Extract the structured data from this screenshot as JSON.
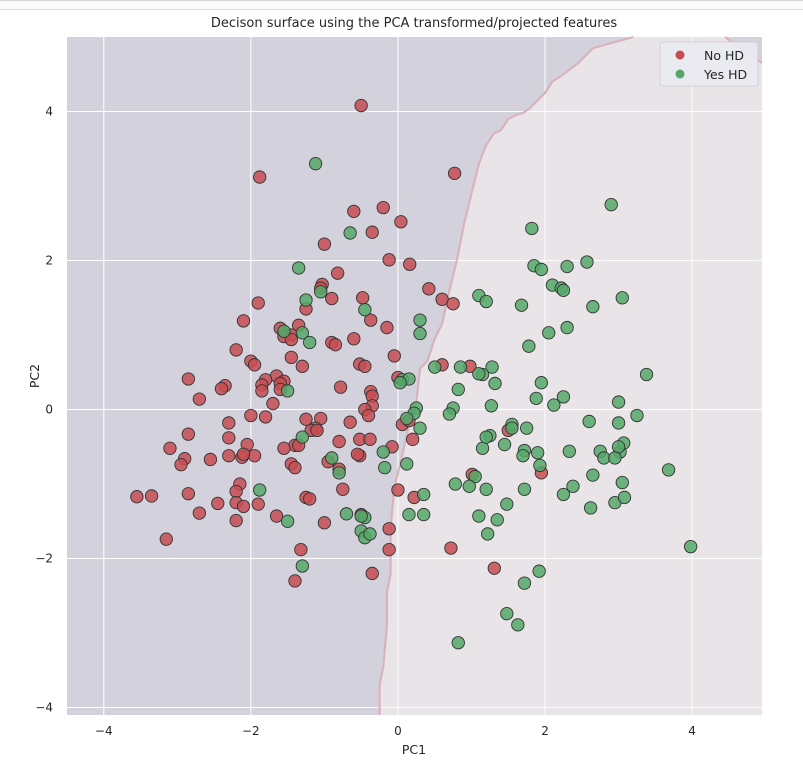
{
  "chart_data": {
    "type": "scatter",
    "title": "Decison surface using the PCA transformed/projected features",
    "xlabel": "PC1",
    "ylabel": "PC2",
    "xlim": [
      -4.5,
      4.95
    ],
    "ylim": [
      -4.1,
      5.0
    ],
    "xticks": [
      -4,
      -2,
      0,
      2,
      4
    ],
    "yticks": [
      -4,
      -2,
      0,
      2,
      4
    ],
    "xtick_labels": [
      "−4",
      "−2",
      "0",
      "2",
      "4"
    ],
    "ytick_labels": [
      "−4",
      "−2",
      "0",
      "2",
      "4"
    ],
    "grid": true,
    "legend_position": "top-right",
    "decision_boundary": {
      "x": [
        -0.25,
        -0.25,
        -0.2,
        -0.15,
        -0.15,
        -0.1,
        -0.1,
        -0.05,
        0.05,
        0.15,
        0.25,
        0.3,
        0.4,
        0.5,
        0.6,
        0.7,
        0.8,
        0.9,
        1.0,
        1.1,
        1.2,
        1.3,
        1.4,
        1.5,
        1.6,
        1.7,
        1.8,
        1.9,
        2.0,
        2.1,
        2.25,
        2.45,
        2.65,
        3.2
      ],
      "y": [
        -4.1,
        -3.7,
        -3.45,
        -2.9,
        -2.45,
        -2.2,
        -1.6,
        -1.05,
        -0.65,
        -0.2,
        0.1,
        0.55,
        0.65,
        0.95,
        1.15,
        1.6,
        2.0,
        2.5,
        2.9,
        3.3,
        3.55,
        3.7,
        3.75,
        3.9,
        3.95,
        3.98,
        4.05,
        4.15,
        4.25,
        4.4,
        4.5,
        4.65,
        4.85,
        5.0
      ]
    },
    "upper_boundary": {
      "x": [
        4.45,
        4.55,
        4.65,
        4.75,
        4.85,
        4.95
      ],
      "y": [
        5.0,
        4.92,
        4.85,
        4.78,
        4.72,
        4.65
      ]
    },
    "regions": [
      {
        "name": "No HD",
        "color": "#d3d2dc"
      },
      {
        "name": "Yes HD",
        "color": "#e8e4e8"
      }
    ],
    "series": [
      {
        "name": "No HD",
        "color": "#c44e52",
        "points": [
          [
            -0.5,
            4.08
          ],
          [
            -1.88,
            3.12
          ],
          [
            0.77,
            3.17
          ],
          [
            -0.6,
            2.66
          ],
          [
            -0.2,
            2.71
          ],
          [
            0.04,
            2.52
          ],
          [
            -0.35,
            2.38
          ],
          [
            -1.0,
            2.22
          ],
          [
            -0.12,
            2.01
          ],
          [
            0.16,
            1.95
          ],
          [
            -0.82,
            1.83
          ],
          [
            -1.03,
            1.68
          ],
          [
            -1.05,
            1.63
          ],
          [
            0.42,
            1.62
          ],
          [
            0.6,
            1.48
          ],
          [
            0.75,
            1.42
          ],
          [
            -1.9,
            1.43
          ],
          [
            -0.9,
            1.49
          ],
          [
            -0.48,
            1.5
          ],
          [
            -1.25,
            1.35
          ],
          [
            -0.37,
            1.2
          ],
          [
            -2.1,
            1.19
          ],
          [
            -1.6,
            1.09
          ],
          [
            -1.35,
            1.13
          ],
          [
            -1.45,
            1.0
          ],
          [
            -1.55,
            0.98
          ],
          [
            -1.45,
            0.94
          ],
          [
            -0.15,
            1.1
          ],
          [
            -0.9,
            0.9
          ],
          [
            -0.85,
            0.87
          ],
          [
            -0.6,
            0.95
          ],
          [
            -2.2,
            0.8
          ],
          [
            -0.05,
            0.72
          ],
          [
            -2.0,
            0.65
          ],
          [
            -1.95,
            0.6
          ],
          [
            -1.45,
            0.7
          ],
          [
            -1.3,
            0.58
          ],
          [
            -0.52,
            0.61
          ],
          [
            -0.45,
            0.58
          ],
          [
            -0.78,
            0.3
          ],
          [
            -1.65,
            0.45
          ],
          [
            -1.8,
            0.4
          ],
          [
            -1.85,
            0.33
          ],
          [
            -1.55,
            0.38
          ],
          [
            -1.6,
            0.35
          ],
          [
            -1.6,
            0.27
          ],
          [
            0.0,
            0.43
          ],
          [
            0.6,
            0.6
          ],
          [
            0.98,
            0.58
          ],
          [
            -2.35,
            0.32
          ],
          [
            -2.4,
            0.28
          ],
          [
            -2.85,
            0.41
          ],
          [
            -2.7,
            0.14
          ],
          [
            -0.37,
            0.24
          ],
          [
            -0.35,
            0.18
          ],
          [
            -1.85,
            0.25
          ],
          [
            -0.35,
            0.05
          ],
          [
            -1.7,
            0.08
          ],
          [
            -0.45,
            0.0
          ],
          [
            -2.0,
            -0.08
          ],
          [
            -1.25,
            -0.13
          ],
          [
            -1.8,
            -0.1
          ],
          [
            -1.05,
            -0.12
          ],
          [
            -0.65,
            -0.17
          ],
          [
            -2.3,
            -0.18
          ],
          [
            -0.4,
            -0.08
          ],
          [
            0.06,
            -0.2
          ],
          [
            0.15,
            -0.15
          ],
          [
            0.2,
            -0.4
          ],
          [
            -1.12,
            -0.25
          ],
          [
            -1.18,
            -0.28
          ],
          [
            -1.1,
            -0.28
          ],
          [
            -2.3,
            -0.38
          ],
          [
            -1.4,
            -0.48
          ],
          [
            -1.55,
            -0.52
          ],
          [
            -1.35,
            -0.48
          ],
          [
            -0.52,
            -0.4
          ],
          [
            -0.38,
            -0.4
          ],
          [
            -0.8,
            -0.43
          ],
          [
            -2.85,
            -0.33
          ],
          [
            -3.1,
            -0.52
          ],
          [
            -2.05,
            -0.47
          ],
          [
            -1.95,
            -0.62
          ],
          [
            -2.12,
            -0.64
          ],
          [
            -2.1,
            -0.6
          ],
          [
            -2.3,
            -0.62
          ],
          [
            -0.08,
            -0.5
          ],
          [
            -0.52,
            -0.62
          ],
          [
            -2.55,
            -0.67
          ],
          [
            -2.9,
            -0.66
          ],
          [
            -2.95,
            -0.74
          ],
          [
            -1.45,
            -0.73
          ],
          [
            -1.4,
            -0.78
          ],
          [
            -0.95,
            -0.7
          ],
          [
            -0.8,
            -0.8
          ],
          [
            -0.55,
            -0.6
          ],
          [
            1.01,
            -0.87
          ],
          [
            1.95,
            -0.85
          ],
          [
            1.5,
            -0.28
          ],
          [
            -2.15,
            -1.0
          ],
          [
            -2.2,
            -1.1
          ],
          [
            -2.85,
            -1.13
          ],
          [
            -1.25,
            -1.18
          ],
          [
            -1.2,
            -1.2
          ],
          [
            -3.55,
            -1.17
          ],
          [
            -3.35,
            -1.16
          ],
          [
            -0.75,
            -1.07
          ],
          [
            0.0,
            -1.08
          ],
          [
            -1.65,
            -1.43
          ],
          [
            -2.2,
            -1.25
          ],
          [
            -2.1,
            -1.3
          ],
          [
            -1.9,
            -1.27
          ],
          [
            -2.45,
            -1.26
          ],
          [
            -2.7,
            -1.39
          ],
          [
            -2.2,
            -1.49
          ],
          [
            -1.0,
            -1.52
          ],
          [
            0.22,
            -1.18
          ],
          [
            -0.5,
            -1.41
          ],
          [
            -0.12,
            -1.6
          ],
          [
            -3.15,
            -1.74
          ],
          [
            -0.12,
            -1.88
          ],
          [
            0.72,
            -1.86
          ],
          [
            -1.32,
            -1.88
          ],
          [
            1.31,
            -2.13
          ],
          [
            -1.4,
            -2.3
          ],
          [
            -0.35,
            -2.2
          ]
        ]
      },
      {
        "name": "Yes HD",
        "color": "#55a868",
        "points": [
          [
            -1.12,
            3.3
          ],
          [
            2.9,
            2.75
          ],
          [
            1.82,
            2.43
          ],
          [
            -0.65,
            2.37
          ],
          [
            2.57,
            1.98
          ],
          [
            1.85,
            1.93
          ],
          [
            1.95,
            1.88
          ],
          [
            2.3,
            1.92
          ],
          [
            -1.35,
            1.9
          ],
          [
            2.1,
            1.67
          ],
          [
            2.22,
            1.63
          ],
          [
            2.25,
            1.6
          ],
          [
            1.68,
            1.4
          ],
          [
            2.65,
            1.38
          ],
          [
            1.1,
            1.53
          ],
          [
            1.2,
            1.45
          ],
          [
            3.05,
            1.5
          ],
          [
            -1.3,
            1.03
          ],
          [
            -1.55,
            1.05
          ],
          [
            -1.05,
            1.58
          ],
          [
            -1.25,
            1.47
          ],
          [
            -0.45,
            1.34
          ],
          [
            0.3,
            1.2
          ],
          [
            0.3,
            1.02
          ],
          [
            2.05,
            1.03
          ],
          [
            2.3,
            1.1
          ],
          [
            1.78,
            0.85
          ],
          [
            -1.2,
            0.9
          ],
          [
            0.5,
            0.57
          ],
          [
            0.85,
            0.57
          ],
          [
            1.28,
            0.57
          ],
          [
            1.15,
            0.47
          ],
          [
            1.1,
            0.48
          ],
          [
            3.38,
            0.47
          ],
          [
            0.06,
            0.4
          ],
          [
            0.15,
            0.41
          ],
          [
            0.03,
            0.36
          ],
          [
            1.32,
            0.35
          ],
          [
            1.95,
            0.36
          ],
          [
            0.82,
            0.27
          ],
          [
            -1.5,
            0.25
          ],
          [
            1.88,
            0.15
          ],
          [
            2.25,
            0.17
          ],
          [
            3.0,
            0.1
          ],
          [
            0.75,
            0.02
          ],
          [
            0.7,
            -0.06
          ],
          [
            1.27,
            0.05
          ],
          [
            2.12,
            0.06
          ],
          [
            0.25,
            0.02
          ],
          [
            0.22,
            -0.05
          ],
          [
            0.12,
            -0.12
          ],
          [
            0.3,
            -0.25
          ],
          [
            2.6,
            -0.16
          ],
          [
            3.0,
            -0.18
          ],
          [
            3.25,
            -0.08
          ],
          [
            1.55,
            -0.2
          ],
          [
            1.25,
            -0.35
          ],
          [
            1.45,
            -0.47
          ],
          [
            1.55,
            -0.25
          ],
          [
            1.75,
            -0.25
          ],
          [
            1.72,
            -0.55
          ],
          [
            1.9,
            -0.58
          ],
          [
            1.7,
            -0.62
          ],
          [
            2.33,
            -0.56
          ],
          [
            2.75,
            -0.56
          ],
          [
            3.02,
            -0.57
          ],
          [
            3.07,
            -0.45
          ],
          [
            3.0,
            -0.5
          ],
          [
            2.8,
            -0.65
          ],
          [
            2.95,
            -0.65
          ],
          [
            1.15,
            -0.52
          ],
          [
            1.2,
            -0.37
          ],
          [
            -1.3,
            -0.37
          ],
          [
            -0.9,
            -0.65
          ],
          [
            -0.2,
            -0.57
          ],
          [
            -0.8,
            -0.85
          ],
          [
            -0.18,
            -0.78
          ],
          [
            0.12,
            -0.73
          ],
          [
            1.93,
            -0.75
          ],
          [
            2.65,
            -0.88
          ],
          [
            3.68,
            -0.81
          ],
          [
            1.05,
            -0.9
          ],
          [
            0.78,
            -1.0
          ],
          [
            1.2,
            -1.07
          ],
          [
            1.72,
            -1.07
          ],
          [
            2.38,
            -1.03
          ],
          [
            2.25,
            -1.14
          ],
          [
            3.05,
            -0.98
          ],
          [
            0.35,
            -1.14
          ],
          [
            0.97,
            -1.03
          ],
          [
            1.48,
            -1.27
          ],
          [
            2.62,
            -1.32
          ],
          [
            2.95,
            -1.25
          ],
          [
            3.08,
            -1.18
          ],
          [
            -1.88,
            -1.08
          ],
          [
            -0.7,
            -1.4
          ],
          [
            -0.45,
            -1.45
          ],
          [
            -0.5,
            -1.43
          ],
          [
            0.35,
            -1.41
          ],
          [
            0.15,
            -1.41
          ],
          [
            1.1,
            -1.43
          ],
          [
            1.35,
            -1.48
          ],
          [
            1.22,
            -1.67
          ],
          [
            -1.5,
            -1.5
          ],
          [
            -0.5,
            -1.63
          ],
          [
            -0.45,
            -1.72
          ],
          [
            -0.38,
            -1.67
          ],
          [
            -1.3,
            -2.1
          ],
          [
            1.92,
            -2.17
          ],
          [
            1.72,
            -2.33
          ],
          [
            3.98,
            -1.84
          ],
          [
            1.48,
            -2.74
          ],
          [
            1.63,
            -2.89
          ],
          [
            0.82,
            -3.13
          ]
        ]
      }
    ]
  }
}
